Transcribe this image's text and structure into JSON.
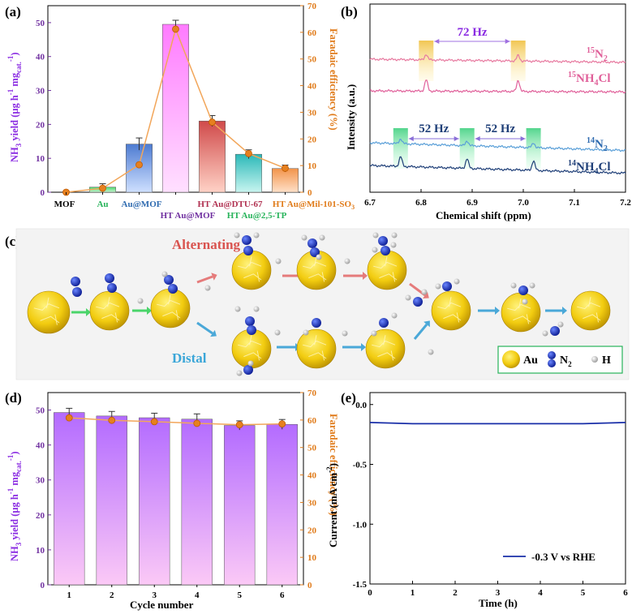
{
  "colors": {
    "purple": "#7030a0",
    "violet": "#8a2be2",
    "orange": "#e07b1a",
    "pink": "#e0609a",
    "blue": "#2f6bb0",
    "darkblue": "#1f3f78",
    "green": "#27b35a",
    "salmon": "#d9534f",
    "cyan": "#3aa6d8",
    "gold": "#e6b800",
    "nblue": "#1a2fa8"
  },
  "panel_labels": {
    "a": "(a)",
    "b": "(b)",
    "c": "(c)",
    "d": "(d)",
    "e": "(e)"
  },
  "chart_data": [
    {
      "id": "a",
      "type": "bar",
      "categories": [
        "MOF",
        "Au",
        "Au@MOF",
        "HT Au@MOF",
        "HT Au@DTU-67",
        "HT Au@2,5-TP",
        "HT Au@Mil-101-SO3"
      ],
      "series": [
        {
          "name": "NH3 yield",
          "values": [
            0,
            1.5,
            14.2,
            49.5,
            21.0,
            11.2,
            7.0
          ],
          "errors": [
            0,
            1.0,
            1.8,
            1.2,
            1.6,
            1.3,
            1.0
          ]
        },
        {
          "name": "Faradaic efficiency",
          "values": [
            0,
            1.5,
            10.3,
            61.2,
            26.3,
            14.5,
            9.0
          ]
        }
      ],
      "ylabel_left": "NH3 yield (μg h-1 mgcat.-1)",
      "ylabel_right": "Faradaic efficiency (%)",
      "ylim_left": [
        0,
        55
      ],
      "ylim_right": [
        0,
        70
      ],
      "yticks_left": [
        "0",
        "10",
        "20",
        "30",
        "40",
        "50"
      ],
      "yticks_right": [
        "0",
        "10",
        "20",
        "30",
        "40",
        "50",
        "60",
        "70"
      ]
    },
    {
      "id": "b",
      "type": "line",
      "xlabel": "Chemical shift (ppm)",
      "ylabel": "Intensity (a.u.)",
      "xlim": [
        6.7,
        7.2
      ],
      "xticks": [
        "6.7",
        "6.8",
        "6.9",
        "7.0",
        "7.1",
        "7.2"
      ],
      "series": [
        {
          "name": "15N2",
          "peaks": [
            6.81,
            6.99
          ]
        },
        {
          "name": "15NH4Cl",
          "peaks": [
            6.81,
            6.99
          ]
        },
        {
          "name": "14N2",
          "peaks": [
            6.76,
            6.89,
            7.02
          ]
        },
        {
          "name": "14NH4Cl",
          "peaks": [
            6.76,
            6.89,
            7.02
          ]
        }
      ],
      "annotations": [
        "72 Hz",
        "52 Hz",
        "52 Hz"
      ]
    },
    {
      "id": "d",
      "type": "bar",
      "xlabel": "Cycle number",
      "categories": [
        "1",
        "2",
        "3",
        "4",
        "5",
        "6"
      ],
      "series": [
        {
          "name": "NH3 yield",
          "values": [
            49.3,
            48.3,
            47.8,
            47.4,
            45.6,
            45.9
          ],
          "errors": [
            1.2,
            1.3,
            1.3,
            1.5,
            1.3,
            1.4
          ]
        },
        {
          "name": "Faradaic efficiency",
          "values": [
            60.8,
            59.9,
            59.4,
            58.8,
            58.3,
            58.6
          ]
        }
      ],
      "ylabel_left": "NH3 yield (μg h-1 mgcat.-1)",
      "ylabel_right": "Faradaic efficiency (%)",
      "ylim_left": [
        0,
        55
      ],
      "ylim_right": [
        0,
        70
      ],
      "yticks_left": [
        "0",
        "10",
        "20",
        "30",
        "40",
        "50"
      ],
      "yticks_right": [
        "0",
        "10",
        "20",
        "30",
        "40",
        "50",
        "60",
        "70"
      ]
    },
    {
      "id": "e",
      "type": "line",
      "xlabel": "Time (h)",
      "ylabel": "Current (mA cm-2)",
      "xlim": [
        0,
        6
      ],
      "ylim": [
        -1.5,
        0.1
      ],
      "xticks": [
        "0",
        "1",
        "2",
        "3",
        "4",
        "5",
        "6"
      ],
      "yticks": [
        "0.0",
        "-0.5",
        "-1.0",
        "-1.5"
      ],
      "series": [
        {
          "name": "-0.3 V vs RHE",
          "x": [
            0,
            1,
            2,
            3,
            4,
            5,
            6
          ],
          "y": [
            -0.15,
            -0.16,
            -0.16,
            -0.16,
            -0.16,
            -0.16,
            -0.15
          ]
        }
      ],
      "legend": "-0.3 V vs RHE"
    }
  ],
  "panel_a": {
    "ylabel_left_main": "NH",
    "ylabel_left_sub3": "3",
    "ylabel_left_rest": " yield (μg h",
    "ylabel_left_sup": "-1",
    "ylabel_left_rest2": " mg",
    "ylabel_left_sub": "cat.",
    "ylabel_left_sup2": "-1",
    "ylabel_left_end": ")",
    "ylabel_right": "Faradaic efficiency (%)",
    "cat_colors": [
      "#000000",
      "#27b35a",
      "#2f6bb0",
      "#7030a0",
      "#b03050",
      "#27b35a",
      "#e07b1a"
    ]
  },
  "panel_b": {
    "label_15N2_sup": "15",
    "label_15N2_main": "N",
    "label_15N2_sub": "2",
    "label_15NH4_sup": "15",
    "label_15NH4_main": "NH",
    "label_15NH4_sub": "4",
    "label_15NH4_end": "Cl",
    "label_14N2_sup": "14",
    "label_14N2_main": "N",
    "label_14N2_sub": "2",
    "label_14NH4_sup": "14",
    "label_14NH4_main": "NH",
    "label_14NH4_sub": "4",
    "label_14NH4_end": "Cl"
  },
  "panel_c": {
    "alternating": "Alternating",
    "distal": "Distal",
    "legend_au": "Au",
    "legend_n2_main": "N",
    "legend_n2_sub": "2",
    "legend_h": "H"
  },
  "panel_e": {
    "ylabel_main": "Current (mA cm",
    "ylabel_sup": "-2",
    "ylabel_end": ")",
    "legend": "-0.3 V vs RHE"
  }
}
